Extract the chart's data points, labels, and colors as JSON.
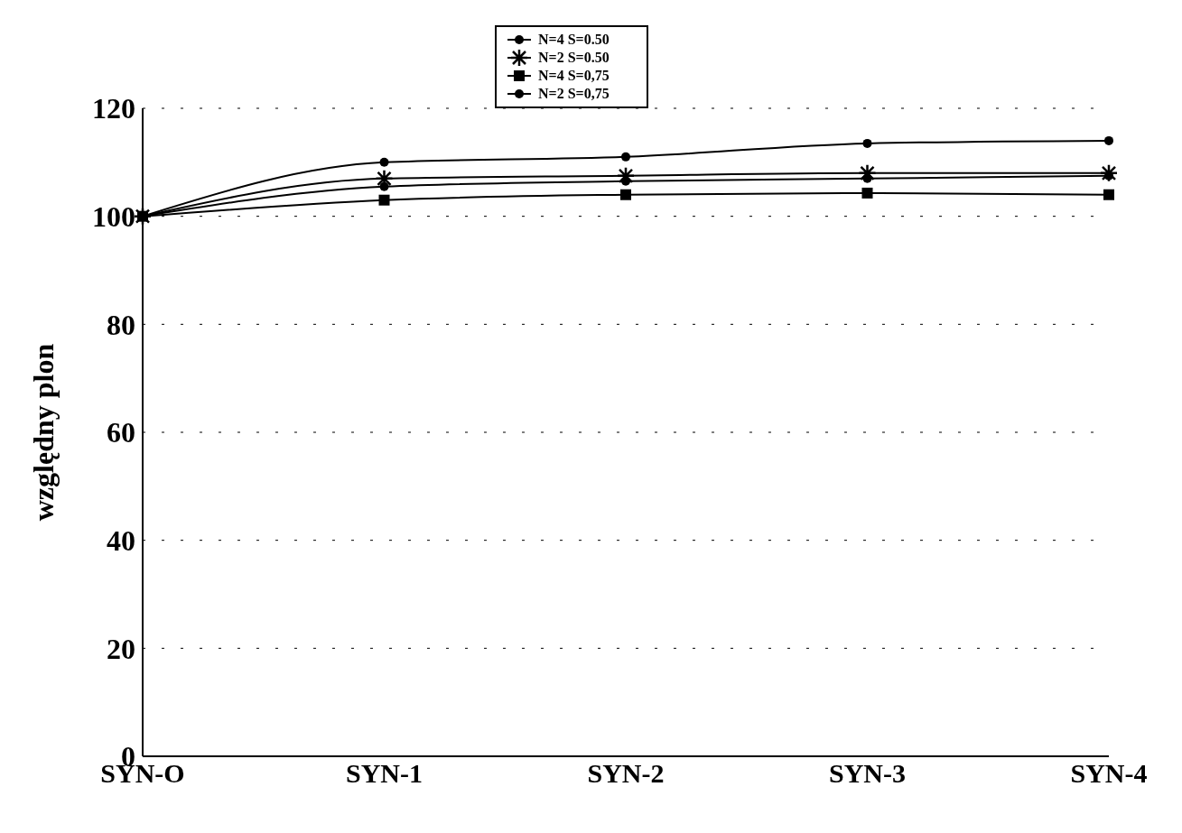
{
  "chart_data": {
    "type": "line",
    "ylabel": "względny plon",
    "categories": [
      "SYN-O",
      "SYN-1",
      "SYN-2",
      "SYN-3",
      "SYN-4"
    ],
    "series": [
      {
        "name": "N=4 S=0.50",
        "color": "#000000",
        "marker": "circle",
        "values": [
          100,
          110,
          111,
          113.5,
          114
        ]
      },
      {
        "name": "N=2 S=0.50",
        "color": "#000000",
        "marker": "cross",
        "values": [
          100,
          107,
          107.5,
          108,
          108
        ]
      },
      {
        "name": "N=4 S=0,75",
        "color": "#000000",
        "marker": "square",
        "values": [
          100,
          103,
          104,
          104.3,
          104
        ]
      },
      {
        "name": "N=2 S=0,75",
        "color": "#000000",
        "marker": "circle",
        "values": [
          100,
          105.5,
          106.5,
          107,
          107.5
        ]
      }
    ],
    "ylim": [
      0,
      120
    ],
    "yticks": [
      0,
      20,
      40,
      60,
      80,
      100,
      120
    ],
    "grid": "y",
    "legend": "top",
    "line_style": "solid"
  }
}
